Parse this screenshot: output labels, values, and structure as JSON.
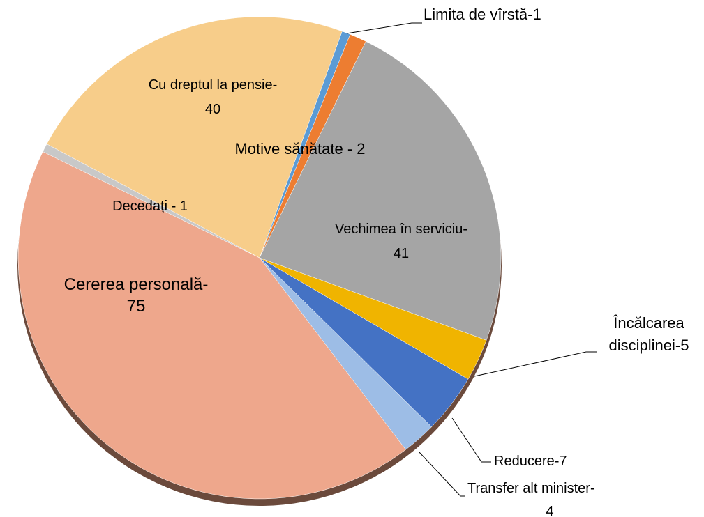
{
  "chart_data": {
    "type": "pie",
    "categories": [
      "Limita de vîrstă-1",
      "Motive sănătate - 2",
      "Vechimea în serviciu-\n41",
      "Încălcarea\ndisciplinei-5",
      "Reducere-7",
      "Transfer alt minister-\n4",
      "Cererea personală-\n75",
      "Decedați - 1",
      "Cu dreptul la pensie-\n40"
    ],
    "values": [
      1,
      2,
      41,
      5,
      7,
      4,
      75,
      1,
      40
    ],
    "colors": [
      "#5b9bd5",
      "#ed7d31",
      "#a5a5a5",
      "#f0b400",
      "#4472c4",
      "#9dbde6",
      "#eea78c",
      "#c8c8c8",
      "#f7cd8a"
    ]
  }
}
